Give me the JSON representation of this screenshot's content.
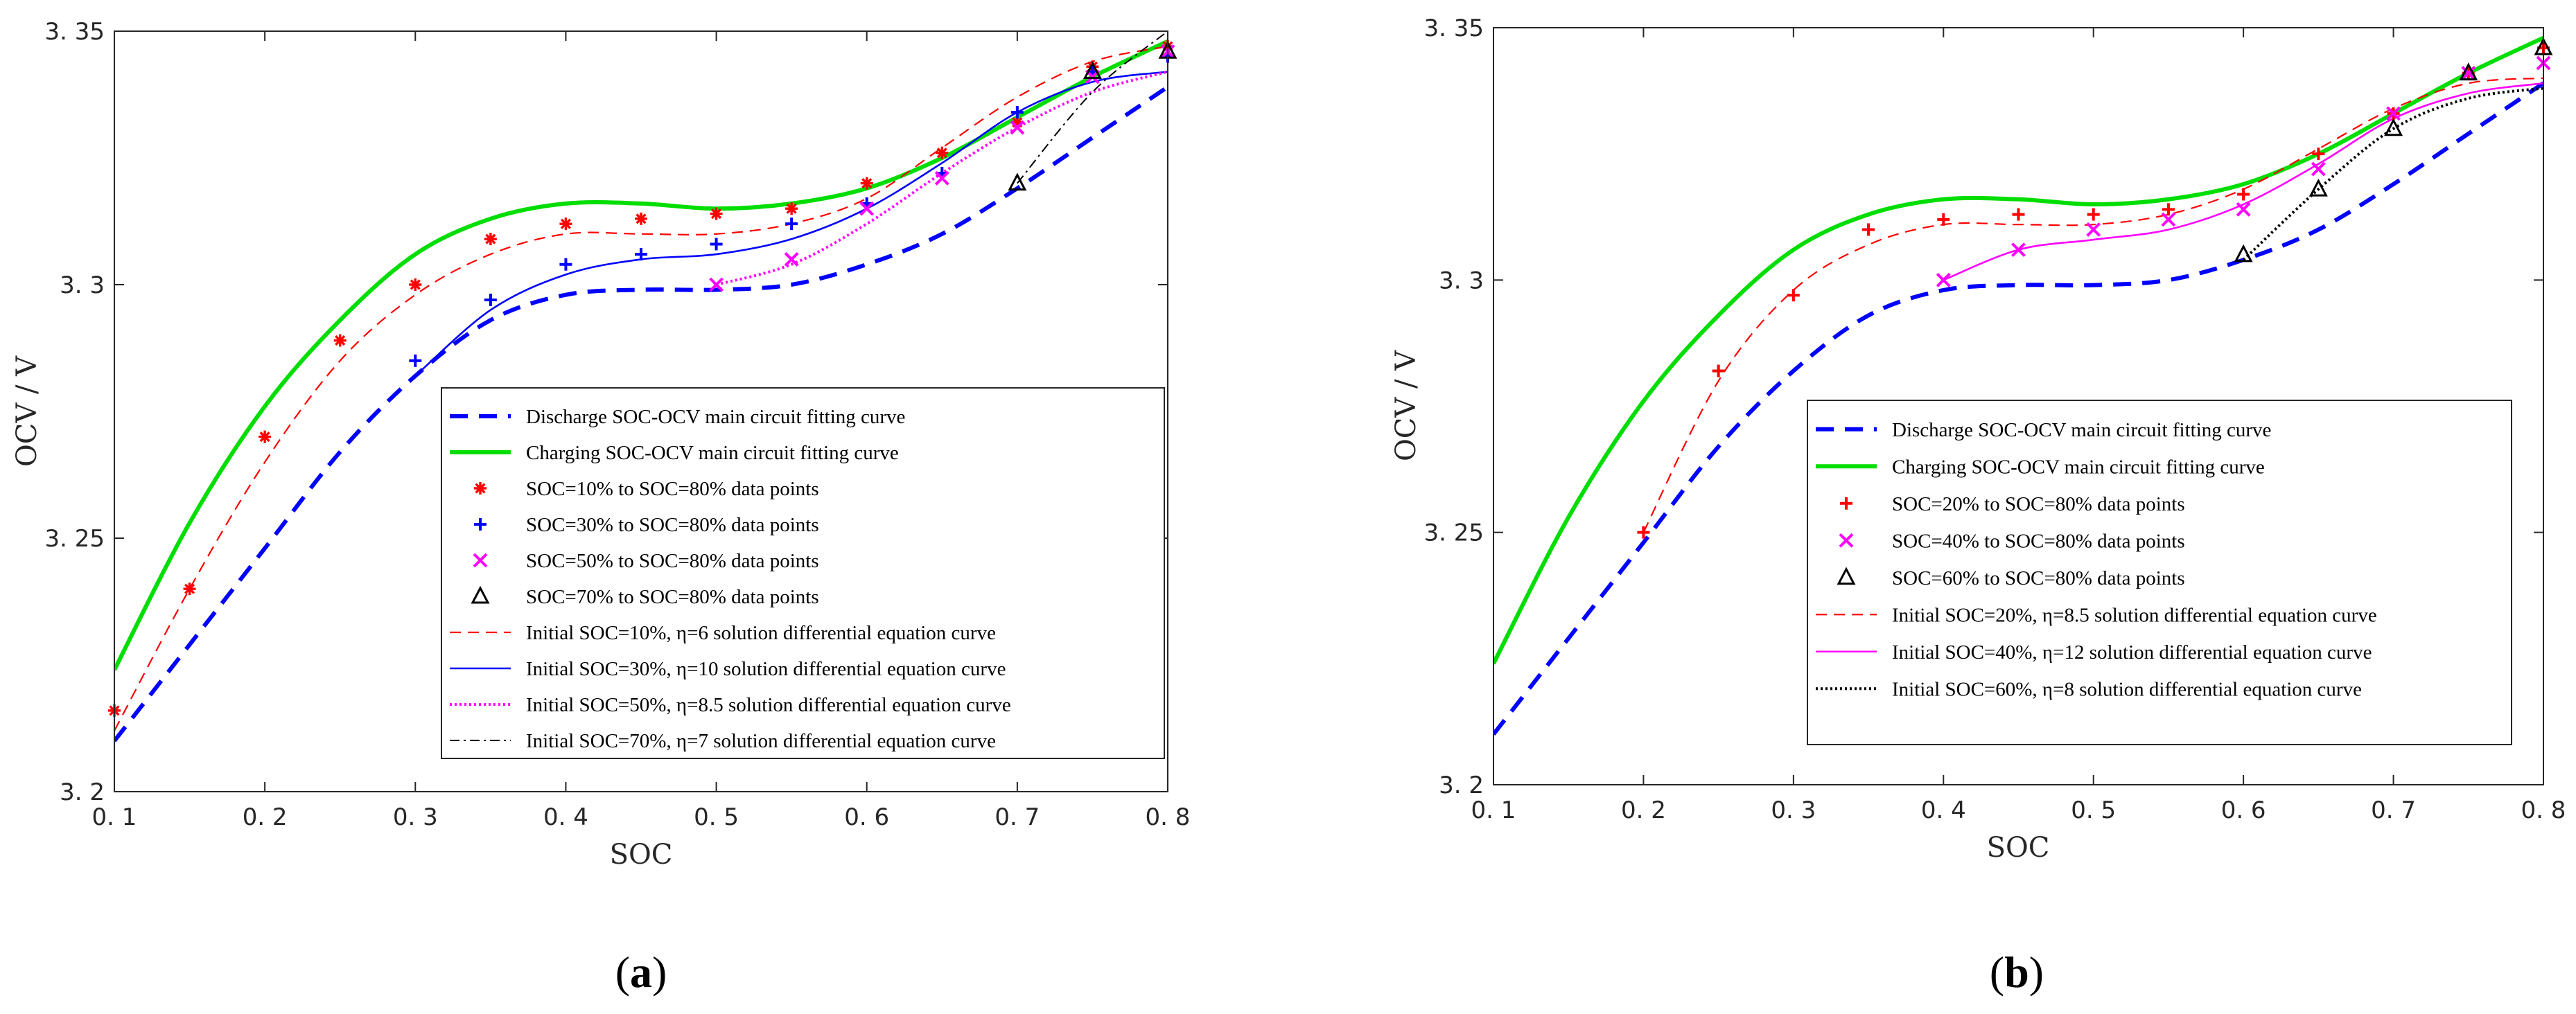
{
  "chart_data": [
    {
      "panel": "a",
      "panel_label": {
        "open": "(",
        "letter": "a",
        "close": ")"
      },
      "type": "line",
      "xlabel": "SOC",
      "ylabel": "OCV / V",
      "xlim": [
        0.1,
        0.8
      ],
      "ylim": [
        3.2,
        3.35
      ],
      "xticks": [
        0.1,
        0.2,
        0.3,
        0.4,
        0.5,
        0.6,
        0.7,
        0.8
      ],
      "xtick_labels": [
        "0. 1",
        "0. 2",
        "0. 3",
        "0. 4",
        "0. 5",
        "0. 6",
        "0. 7",
        "0. 8"
      ],
      "yticks": [
        3.2,
        3.25,
        3.3,
        3.35
      ],
      "ytick_labels": [
        "3. 2",
        "3. 25",
        "3. 3",
        "3. 35"
      ],
      "legend_position": "bottom-right",
      "series": [
        {
          "name": "Discharge SOC-OCV main circuit fitting curve",
          "style": "dashed-thick",
          "color": "#0000ff",
          "x": [
            0.1,
            0.15,
            0.2,
            0.25,
            0.3,
            0.35,
            0.4,
            0.45,
            0.5,
            0.55,
            0.6,
            0.65,
            0.7,
            0.75,
            0.8
          ],
          "y": [
            3.21,
            3.229,
            3.248,
            3.267,
            3.282,
            3.293,
            3.298,
            3.299,
            3.299,
            3.3,
            3.304,
            3.31,
            3.319,
            3.329,
            3.339
          ]
        },
        {
          "name": "Charging SOC-OCV main circuit fitting curve",
          "style": "solid-thick",
          "color": "#00dd00",
          "x": [
            0.1,
            0.15,
            0.2,
            0.25,
            0.3,
            0.35,
            0.4,
            0.45,
            0.5,
            0.55,
            0.6,
            0.65,
            0.7,
            0.75,
            0.8
          ],
          "y": [
            3.224,
            3.253,
            3.276,
            3.293,
            3.306,
            3.313,
            3.316,
            3.316,
            3.315,
            3.316,
            3.319,
            3.325,
            3.333,
            3.341,
            3.348
          ]
        },
        {
          "name": "SOC=10% to SOC=80% data points",
          "style": "marker-asterisk",
          "color": "#ff0000",
          "x": [
            0.1,
            0.15,
            0.2,
            0.25,
            0.3,
            0.35,
            0.4,
            0.45,
            0.5,
            0.55,
            0.6,
            0.65,
            0.7,
            0.75,
            0.8
          ],
          "y": [
            3.216,
            3.24,
            3.27,
            3.289,
            3.3,
            3.309,
            3.312,
            3.313,
            3.314,
            3.315,
            3.32,
            3.326,
            3.332,
            3.343,
            3.347
          ]
        },
        {
          "name": "SOC=30% to SOC=80% data points",
          "style": "marker-plus",
          "color": "#0000ff",
          "x": [
            0.3,
            0.35,
            0.4,
            0.45,
            0.5,
            0.55,
            0.6,
            0.65,
            0.7,
            0.75,
            0.8
          ],
          "y": [
            3.285,
            3.297,
            3.304,
            3.306,
            3.308,
            3.312,
            3.316,
            3.322,
            3.334,
            3.342,
            3.345
          ]
        },
        {
          "name": "SOC=50% to SOC=80% data points",
          "style": "marker-x",
          "color": "#ff00ff",
          "x": [
            0.5,
            0.55,
            0.6,
            0.65,
            0.7,
            0.75,
            0.8
          ],
          "y": [
            3.3,
            3.305,
            3.315,
            3.321,
            3.331,
            3.341,
            3.346
          ]
        },
        {
          "name": "SOC=70% to SOC=80% data points",
          "style": "marker-triangle",
          "color": "#000000",
          "x": [
            0.7,
            0.75,
            0.8
          ],
          "y": [
            3.32,
            3.342,
            3.346
          ]
        },
        {
          "name": "Initial SOC=10%, η=6 solution differential equation curve",
          "style": "dashed-thin",
          "color": "#ff0000",
          "x": [
            0.1,
            0.15,
            0.2,
            0.25,
            0.3,
            0.35,
            0.4,
            0.45,
            0.5,
            0.55,
            0.6,
            0.65,
            0.7,
            0.75,
            0.8
          ],
          "y": [
            3.212,
            3.24,
            3.265,
            3.285,
            3.298,
            3.306,
            3.31,
            3.31,
            3.31,
            3.312,
            3.317,
            3.327,
            3.337,
            3.344,
            3.347
          ]
        },
        {
          "name": "Initial SOC=30%, η=10 solution differential equation curve",
          "style": "solid-thin",
          "color": "#0000ff",
          "x": [
            0.3,
            0.35,
            0.4,
            0.45,
            0.5,
            0.55,
            0.6,
            0.65,
            0.7,
            0.75,
            0.8
          ],
          "y": [
            3.282,
            3.295,
            3.302,
            3.305,
            3.306,
            3.309,
            3.315,
            3.324,
            3.334,
            3.34,
            3.342
          ]
        },
        {
          "name": "Initial SOC=50%, η=8.5 solution differential equation curve",
          "style": "dotted",
          "color": "#ff00ff",
          "x": [
            0.5,
            0.55,
            0.6,
            0.65,
            0.7,
            0.75,
            0.8
          ],
          "y": [
            3.3,
            3.304,
            3.312,
            3.322,
            3.331,
            3.338,
            3.342
          ]
        },
        {
          "name": "Initial SOC=70%, η=7 solution differential equation curve",
          "style": "dashdot",
          "color": "#000000",
          "x": [
            0.7,
            0.75,
            0.8
          ],
          "y": [
            3.32,
            3.338,
            3.35
          ]
        }
      ]
    },
    {
      "panel": "b",
      "panel_label": {
        "open": "(",
        "letter": "b",
        "close": ")"
      },
      "type": "line",
      "xlabel": "SOC",
      "ylabel": "OCV / V",
      "xlim": [
        0.1,
        0.8
      ],
      "ylim": [
        3.2,
        3.35
      ],
      "xticks": [
        0.1,
        0.2,
        0.3,
        0.4,
        0.5,
        0.6,
        0.7,
        0.8
      ],
      "xtick_labels": [
        "0. 1",
        "0. 2",
        "0. 3",
        "0. 4",
        "0. 5",
        "0. 6",
        "0. 7",
        "0. 8"
      ],
      "yticks": [
        3.2,
        3.25,
        3.3,
        3.35
      ],
      "ytick_labels": [
        "3. 2",
        "3. 25",
        "3. 3",
        "3. 35"
      ],
      "legend_position": "bottom-right",
      "series": [
        {
          "name": "Discharge SOC-OCV main circuit fitting curve",
          "style": "dashed-thick",
          "color": "#0000ff",
          "x": [
            0.1,
            0.15,
            0.2,
            0.25,
            0.3,
            0.35,
            0.4,
            0.45,
            0.5,
            0.55,
            0.6,
            0.65,
            0.7,
            0.75,
            0.8
          ],
          "y": [
            3.21,
            3.229,
            3.248,
            3.267,
            3.282,
            3.293,
            3.298,
            3.299,
            3.299,
            3.3,
            3.304,
            3.31,
            3.319,
            3.329,
            3.339
          ]
        },
        {
          "name": "Charging SOC-OCV main circuit fitting curve",
          "style": "solid-thick",
          "color": "#00dd00",
          "x": [
            0.1,
            0.15,
            0.2,
            0.25,
            0.3,
            0.35,
            0.4,
            0.45,
            0.5,
            0.55,
            0.6,
            0.65,
            0.7,
            0.75,
            0.8
          ],
          "y": [
            3.224,
            3.253,
            3.276,
            3.293,
            3.306,
            3.313,
            3.316,
            3.316,
            3.315,
            3.316,
            3.319,
            3.325,
            3.333,
            3.341,
            3.348
          ]
        },
        {
          "name": "SOC=20% to SOC=80% data points",
          "style": "marker-plus",
          "color": "#ff0000",
          "x": [
            0.2,
            0.25,
            0.3,
            0.35,
            0.4,
            0.45,
            0.5,
            0.55,
            0.6,
            0.65,
            0.7,
            0.75,
            0.8
          ],
          "y": [
            3.25,
            3.282,
            3.297,
            3.31,
            3.312,
            3.313,
            3.313,
            3.314,
            3.317,
            3.325,
            3.333,
            3.341,
            3.346
          ]
        },
        {
          "name": "SOC=40% to SOC=80% data points",
          "style": "marker-x",
          "color": "#ff00ff",
          "x": [
            0.4,
            0.45,
            0.5,
            0.55,
            0.6,
            0.65,
            0.7,
            0.75,
            0.8
          ],
          "y": [
            3.3,
            3.306,
            3.31,
            3.312,
            3.314,
            3.322,
            3.333,
            3.341,
            3.343
          ]
        },
        {
          "name": "SOC=60% to SOC=80% data points",
          "style": "marker-triangle",
          "color": "#000000",
          "x": [
            0.6,
            0.65,
            0.7,
            0.75,
            0.8
          ],
          "y": [
            3.305,
            3.318,
            3.33,
            3.341,
            3.346
          ]
        },
        {
          "name": "Initial SOC=20%, η=8.5 solution differential equation curve",
          "style": "dashed-thin",
          "color": "#ff0000",
          "x": [
            0.2,
            0.25,
            0.3,
            0.35,
            0.4,
            0.45,
            0.5,
            0.55,
            0.6,
            0.65,
            0.7,
            0.75,
            0.8
          ],
          "y": [
            3.25,
            3.28,
            3.298,
            3.307,
            3.311,
            3.311,
            3.311,
            3.313,
            3.318,
            3.326,
            3.334,
            3.339,
            3.34
          ]
        },
        {
          "name": "Initial SOC=40%, η=12 solution differential equation curve",
          "style": "solid-thin",
          "color": "#ff00ff",
          "x": [
            0.4,
            0.45,
            0.5,
            0.55,
            0.6,
            0.65,
            0.7,
            0.75,
            0.8
          ],
          "y": [
            3.3,
            3.306,
            3.308,
            3.31,
            3.315,
            3.323,
            3.332,
            3.337,
            3.339
          ]
        },
        {
          "name": "Initial SOC=60%, η=8 solution differential equation curve",
          "style": "dotted",
          "color": "#000000",
          "x": [
            0.6,
            0.65,
            0.7,
            0.75,
            0.8
          ],
          "y": [
            3.304,
            3.318,
            3.33,
            3.336,
            3.338
          ]
        }
      ]
    }
  ]
}
